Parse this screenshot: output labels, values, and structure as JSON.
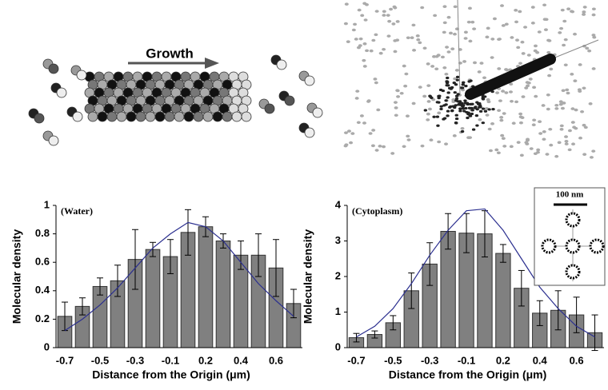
{
  "illustration": {
    "label": "Growth"
  },
  "chart_data": [
    {
      "type": "bar",
      "annotation": "(Water)",
      "y_label": "Molecular density",
      "x_label": "Distance from the Origin (μm)",
      "categories": [
        "-0.7",
        null,
        "-0.5",
        null,
        "-0.3",
        null,
        "-0.1",
        null,
        "0.2",
        null,
        "0.4",
        null,
        "0.6",
        null
      ],
      "values": [
        0.22,
        0.29,
        0.43,
        0.47,
        0.62,
        0.69,
        0.64,
        0.81,
        0.85,
        0.75,
        0.65,
        0.65,
        0.56,
        0.31
      ],
      "errors": [
        0.1,
        0.06,
        0.06,
        0.11,
        0.21,
        0.05,
        0.12,
        0.16,
        0.07,
        0.05,
        0.1,
        0.15,
        0.2,
        0.1
      ],
      "color": "#808080",
      "line": {
        "color": "#2b2f8f",
        "values": [
          0.12,
          0.2,
          0.3,
          0.42,
          0.56,
          0.7,
          0.8,
          0.88,
          0.85,
          0.75,
          0.6,
          0.45,
          0.33,
          0.22
        ]
      },
      "ylim": [
        0,
        1
      ],
      "yticks": [
        0,
        0.2,
        0.4,
        0.6,
        0.8,
        1
      ]
    },
    {
      "type": "bar",
      "annotation": "(Cytoplasm)",
      "inset_label": "100 nm",
      "y_label": "Molecular density",
      "x_label": "Distance from the Origin (μm)",
      "categories": [
        "-0.7",
        null,
        "-0.5",
        null,
        "-0.3",
        null,
        "-0.1",
        null,
        "0.2",
        null,
        "0.4",
        null,
        "0.6",
        null
      ],
      "values": [
        0.28,
        0.37,
        0.7,
        1.6,
        2.35,
        3.27,
        3.22,
        3.2,
        2.65,
        1.67,
        0.97,
        1.05,
        0.92,
        0.42
      ],
      "errors": [
        0.12,
        0.1,
        0.2,
        0.5,
        0.6,
        0.5,
        0.55,
        0.65,
        0.25,
        0.5,
        0.35,
        0.55,
        0.5,
        0.5
      ],
      "color": "#808080",
      "line": {
        "color": "#2b2f8f",
        "values": [
          0.3,
          0.6,
          1.1,
          1.8,
          2.6,
          3.3,
          3.85,
          3.9,
          3.3,
          2.5,
          1.7,
          1.1,
          0.6,
          0.3
        ]
      },
      "ylim": [
        0,
        4
      ],
      "yticks": [
        0,
        1,
        2,
        3,
        4
      ]
    }
  ]
}
